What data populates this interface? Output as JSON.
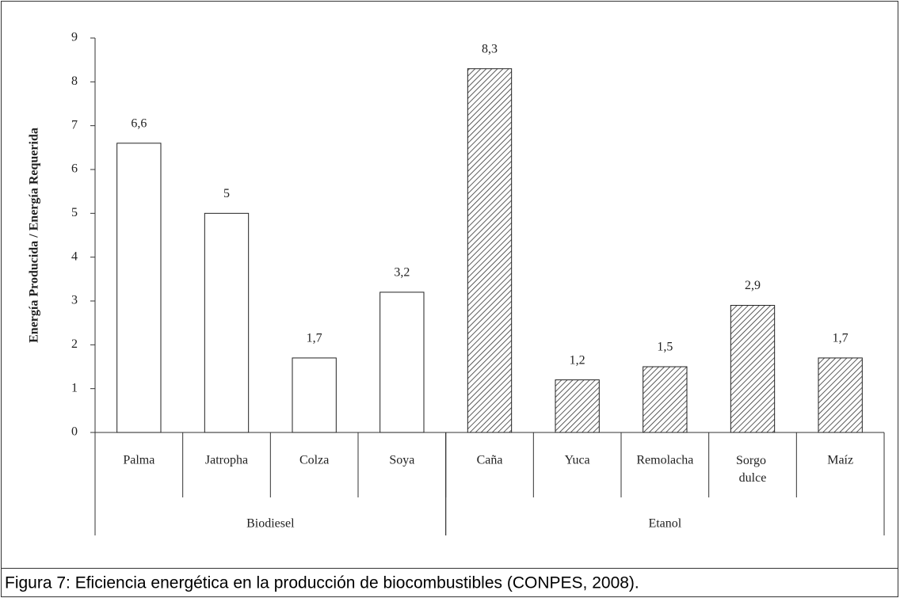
{
  "chart_data": {
    "type": "bar",
    "y_label": "Energía Producida / Energía Requerida",
    "caption": "Figura 7: Eficiencia energética en la producción de biocombustibles (CONPES, 2008).",
    "categories": [
      "Palma",
      "Jatropha",
      "Colza",
      "Soya",
      "Caña",
      "Yuca",
      "Remolacha",
      "Sorgo dulce",
      "Maíz"
    ],
    "series": [
      {
        "name": "Biodiesel",
        "color": "#ffffff",
        "pattern": "none",
        "values": [
          6.6,
          5,
          1.7,
          3.2,
          null,
          null,
          null,
          null,
          null
        ],
        "value_labels": [
          "6,6",
          "5",
          "1,7",
          "3,2",
          null,
          null,
          null,
          null,
          null
        ]
      },
      {
        "name": "Etanol",
        "color": "#ffffff",
        "pattern": "hatch",
        "values": [
          null,
          null,
          null,
          null,
          8.3,
          1.2,
          1.5,
          2.9,
          1.7
        ],
        "value_labels": [
          null,
          null,
          null,
          null,
          "8,3",
          "1,2",
          "1,5",
          "2,9",
          "1,7"
        ]
      }
    ],
    "ylim": [
      0,
      9
    ],
    "yticks": [
      0,
      1,
      2,
      3,
      4,
      5,
      6,
      7,
      8,
      9
    ]
  }
}
